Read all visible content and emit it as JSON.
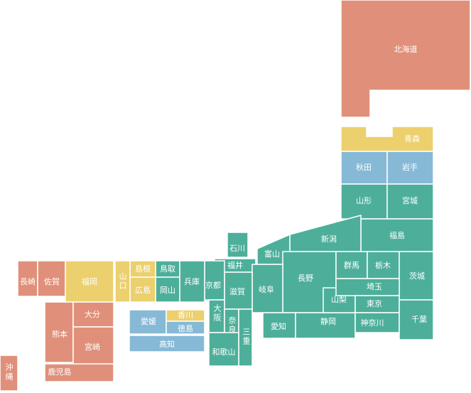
{
  "prefectures": [
    "北海道",
    "青森",
    "秋田",
    "岩手",
    "山形",
    "宮城",
    "福島",
    "新潟",
    "富山",
    "石川",
    "福井",
    "長野",
    "岐阜",
    "愛知",
    "静岡",
    "山梨",
    "群馬",
    "栃木",
    "茨城",
    "埼玉",
    "東京",
    "神奈川",
    "千葉",
    "滋賀",
    "京都",
    "兵庫",
    "鳥取",
    "岡山",
    "島根",
    "広島",
    "山口",
    "大阪",
    "奈良",
    "三重",
    "和歌山",
    "愛媛",
    "香川",
    "徳島",
    "高知",
    "長崎",
    "佐賀",
    "福岡",
    "熊本",
    "大分",
    "宮崎",
    "鹿児島",
    "沖縄"
  ]
}
